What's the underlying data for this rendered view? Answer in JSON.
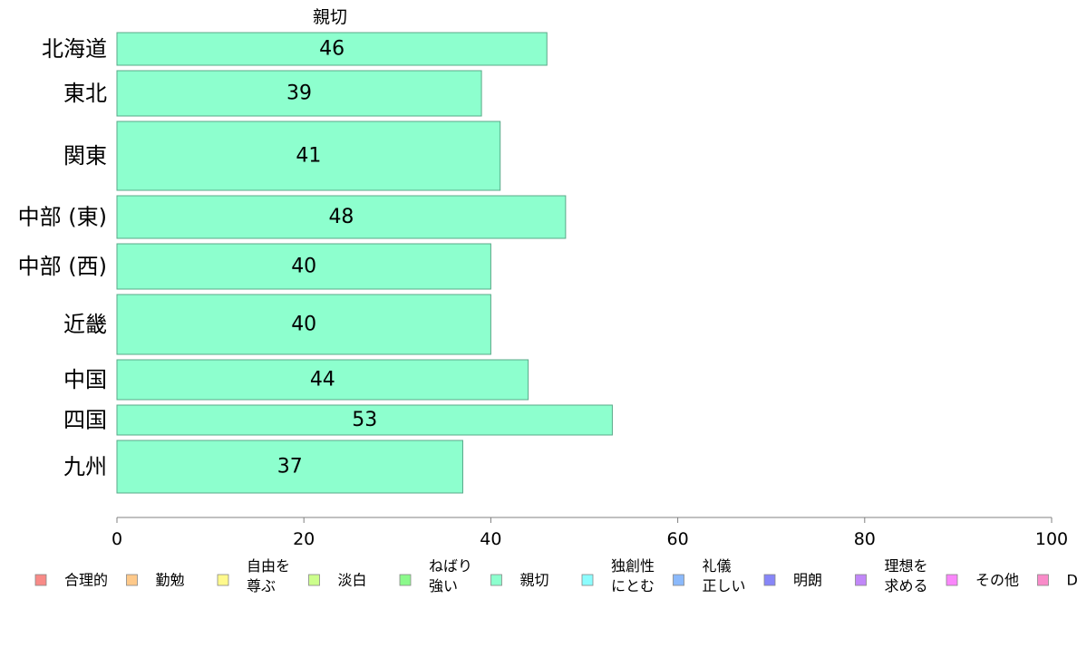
{
  "chart_data": {
    "type": "bar",
    "orientation": "horizontal",
    "title": "親切",
    "xlabel": "",
    "ylabel": "",
    "xlim": [
      0,
      100
    ],
    "x_ticks": [
      "0",
      "20",
      "40",
      "60",
      "80",
      "100"
    ],
    "grid": false,
    "legend_position": "bottom",
    "bar_color": "#8dffce",
    "categories": [
      "北海道",
      "東北",
      "関東",
      "中部 (東)",
      "中部 (西)",
      "近畿",
      "中国",
      "四国",
      "九州"
    ],
    "values": [
      46,
      39,
      41,
      48,
      40,
      40,
      44,
      53,
      37
    ],
    "relative_bar_heights": [
      36,
      50,
      76,
      47,
      50,
      66,
      44,
      33,
      58
    ],
    "legend": [
      {
        "label": "合理的",
        "color": "#f88a87"
      },
      {
        "label": "勤勉",
        "color": "#fec98a"
      },
      {
        "label": "自由を\n尊ぶ",
        "color": "#fff98c"
      },
      {
        "label": "淡白",
        "color": "#ccfe8c"
      },
      {
        "label": "ねばり\n強い",
        "color": "#8bf98b"
      },
      {
        "label": "親切",
        "color": "#8dffce"
      },
      {
        "label": "独創性\nにとむ",
        "color": "#8cfdfe"
      },
      {
        "label": "礼儀\n正しい",
        "color": "#8bb9fb"
      },
      {
        "label": "明朗",
        "color": "#8786f8"
      },
      {
        "label": "理想を\n求める",
        "color": "#c187f8"
      },
      {
        "label": "その他",
        "color": "#fa86fb"
      },
      {
        "label": "D",
        "color": "#f98bc9"
      }
    ]
  }
}
